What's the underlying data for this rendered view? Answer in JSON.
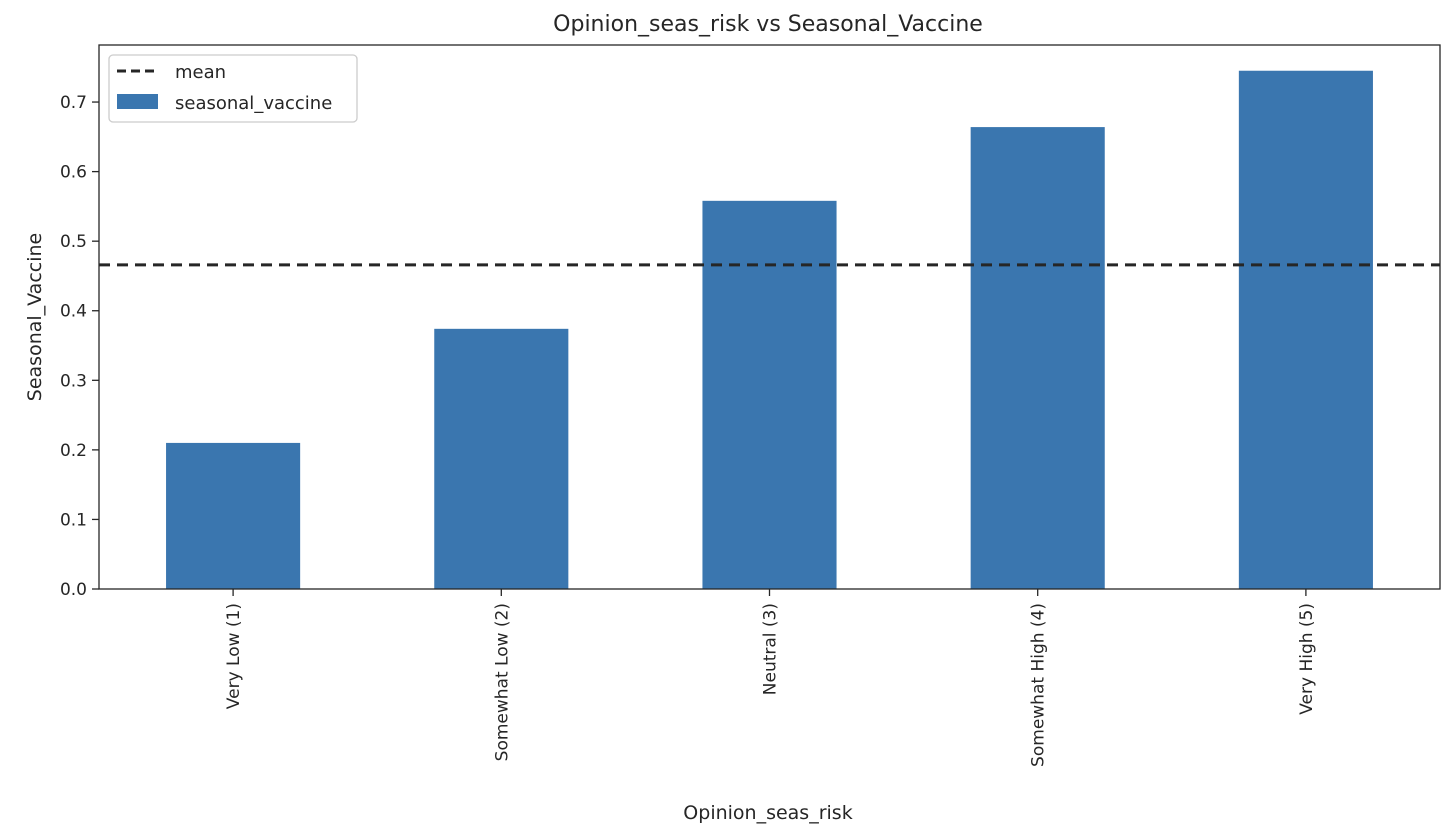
{
  "chart_data": {
    "type": "bar",
    "title": "Opinion_seas_risk vs Seasonal_Vaccine",
    "xlabel": "Opinion_seas_risk",
    "ylabel": "Seasonal_Vaccine",
    "categories": [
      "Very Low (1)",
      "Somewhat Low (2)",
      "Neutral (3)",
      "Somewhat High (4)",
      "Very High (5)"
    ],
    "series": [
      {
        "name": "seasonal_vaccine",
        "values": [
          0.21,
          0.374,
          0.558,
          0.664,
          0.745
        ],
        "color": "#3a76af"
      }
    ],
    "reference_line": {
      "name": "mean",
      "value": 0.466,
      "style": "dashed",
      "color": "#262626"
    },
    "ylim": [
      0,
      0.782
    ],
    "yticks": [
      "0.0",
      "0.1",
      "0.2",
      "0.3",
      "0.4",
      "0.5",
      "0.6",
      "0.7"
    ],
    "legend": {
      "position": "top-left",
      "entries": [
        "mean",
        "seasonal_vaccine"
      ]
    },
    "grid": false
  }
}
